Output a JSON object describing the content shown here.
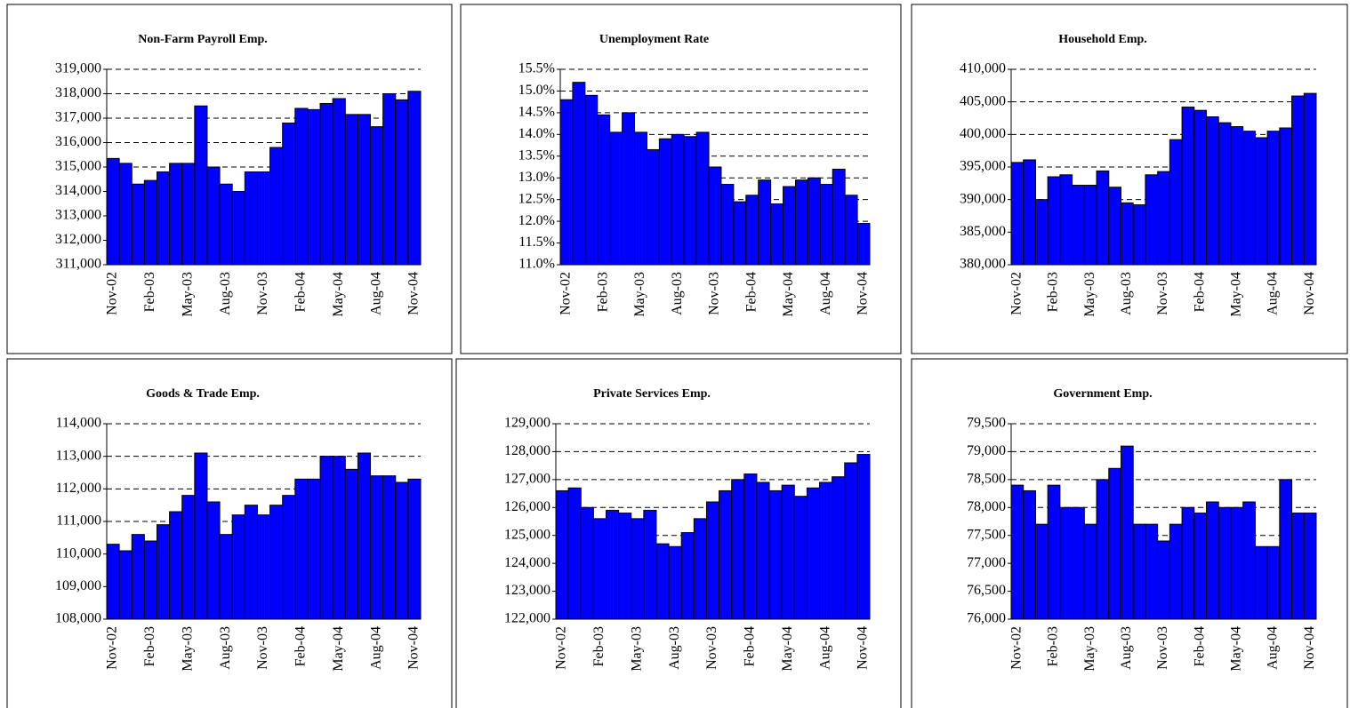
{
  "chart_data": [
    {
      "type": "bar",
      "title": "Non-Farm Payroll Emp.",
      "color": "#0000ff",
      "grid": true,
      "categories": [
        "Nov-02",
        null,
        null,
        "Feb-03",
        null,
        null,
        "May-03",
        null,
        null,
        "Aug-03",
        null,
        null,
        "Nov-03",
        null,
        null,
        "Feb-04",
        null,
        null,
        "May-04",
        null,
        null,
        "Aug-04",
        null,
        null,
        "Nov-04"
      ],
      "values": [
        315350,
        315150,
        314300,
        314450,
        314800,
        315150,
        315150,
        317500,
        315000,
        314300,
        314000,
        314800,
        314800,
        315800,
        316800,
        317400,
        317350,
        317600,
        317800,
        317150,
        317150,
        316650,
        318000,
        317750,
        318100
      ],
      "ylim": [
        311000,
        319000
      ],
      "yticks": [
        {
          "value": 311000,
          "label": "311,000"
        },
        {
          "value": 312000,
          "label": "312,000"
        },
        {
          "value": 313000,
          "label": "313,000"
        },
        {
          "value": 314000,
          "label": "314,000"
        },
        {
          "value": 315000,
          "label": "315,000"
        },
        {
          "value": 316000,
          "label": "316,000"
        },
        {
          "value": 317000,
          "label": "317,000"
        },
        {
          "value": 318000,
          "label": "318,000"
        },
        {
          "value": 319000,
          "label": "319,000"
        }
      ]
    },
    {
      "type": "bar",
      "title": "Unemployment Rate",
      "color": "#0000ff",
      "grid": true,
      "categories": [
        "Nov-02",
        null,
        null,
        "Feb-03",
        null,
        null,
        "May-03",
        null,
        null,
        "Aug-03",
        null,
        null,
        "Nov-03",
        null,
        null,
        "Feb-04",
        null,
        null,
        "May-04",
        null,
        null,
        "Aug-04",
        null,
        null,
        "Nov-04"
      ],
      "values": [
        14.8,
        15.2,
        14.9,
        14.45,
        14.05,
        14.5,
        14.05,
        13.65,
        13.9,
        14.0,
        13.95,
        14.05,
        13.25,
        12.85,
        12.45,
        12.6,
        12.95,
        12.4,
        12.8,
        12.95,
        13.0,
        12.85,
        13.2,
        12.6,
        11.95
      ],
      "ylim": [
        11.0,
        15.5
      ],
      "yticks": [
        {
          "value": 11.0,
          "label": "11.0%"
        },
        {
          "value": 11.5,
          "label": "11.5%"
        },
        {
          "value": 12.0,
          "label": "12.0%"
        },
        {
          "value": 12.5,
          "label": "12.5%"
        },
        {
          "value": 13.0,
          "label": "13.0%"
        },
        {
          "value": 13.5,
          "label": "13.5%"
        },
        {
          "value": 14.0,
          "label": "14.0%"
        },
        {
          "value": 14.5,
          "label": "14.5%"
        },
        {
          "value": 15.0,
          "label": "15.0%"
        },
        {
          "value": 15.5,
          "label": "15.5%"
        }
      ]
    },
    {
      "type": "bar",
      "title": "Household Emp.",
      "color": "#0000ff",
      "grid": true,
      "categories": [
        "Nov-02",
        null,
        null,
        "Feb-03",
        null,
        null,
        "May-03",
        null,
        null,
        "Aug-03",
        null,
        null,
        "Nov-03",
        null,
        null,
        "Feb-04",
        null,
        null,
        "May-04",
        null,
        null,
        "Aug-04",
        null,
        null,
        "Nov-04"
      ],
      "values": [
        395700,
        396100,
        390000,
        393500,
        393800,
        392200,
        392200,
        394400,
        391900,
        389500,
        389200,
        393800,
        394300,
        399200,
        404200,
        403700,
        402700,
        401800,
        401200,
        400500,
        399500,
        400500,
        401000,
        405900,
        406300
      ],
      "ylim": [
        380000,
        410000
      ],
      "yticks": [
        {
          "value": 380000,
          "label": "380,000"
        },
        {
          "value": 385000,
          "label": "385,000"
        },
        {
          "value": 390000,
          "label": "390,000"
        },
        {
          "value": 395000,
          "label": "395,000"
        },
        {
          "value": 400000,
          "label": "400,000"
        },
        {
          "value": 405000,
          "label": "405,000"
        },
        {
          "value": 410000,
          "label": "410,000"
        }
      ]
    },
    {
      "type": "bar",
      "title": "Goods & Trade Emp.",
      "color": "#0000ff",
      "grid": true,
      "categories": [
        "Nov-02",
        null,
        null,
        "Feb-03",
        null,
        null,
        "May-03",
        null,
        null,
        "Aug-03",
        null,
        null,
        "Nov-03",
        null,
        null,
        "Feb-04",
        null,
        null,
        "May-04",
        null,
        null,
        "Aug-04",
        null,
        null,
        "Nov-04"
      ],
      "values": [
        110300,
        110100,
        110600,
        110400,
        110900,
        111300,
        111800,
        113100,
        111600,
        110600,
        111200,
        111500,
        111200,
        111500,
        111800,
        112300,
        112300,
        113000,
        113000,
        112600,
        113100,
        112400,
        112400,
        112200,
        112300
      ],
      "ylim": [
        108000,
        114000
      ],
      "yticks": [
        {
          "value": 108000,
          "label": "108,000"
        },
        {
          "value": 109000,
          "label": "109,000"
        },
        {
          "value": 110000,
          "label": "110,000"
        },
        {
          "value": 111000,
          "label": "111,000"
        },
        {
          "value": 112000,
          "label": "112,000"
        },
        {
          "value": 113000,
          "label": "113,000"
        },
        {
          "value": 114000,
          "label": "114,000"
        }
      ]
    },
    {
      "type": "bar",
      "title": "Private Services Emp.",
      "color": "#0000ff",
      "grid": true,
      "categories": [
        "Nov-02",
        null,
        null,
        "Feb-03",
        null,
        null,
        "May-03",
        null,
        null,
        "Aug-03",
        null,
        null,
        "Nov-03",
        null,
        null,
        "Feb-04",
        null,
        null,
        "May-04",
        null,
        null,
        "Aug-04",
        null,
        null,
        "Nov-04"
      ],
      "values": [
        126600,
        126700,
        126000,
        125600,
        125900,
        125800,
        125600,
        125900,
        124700,
        124600,
        125100,
        125600,
        126200,
        126600,
        127000,
        127200,
        126900,
        126600,
        126800,
        126400,
        126700,
        126900,
        127100,
        127600,
        127900
      ],
      "ylim": [
        122000,
        129000
      ],
      "yticks": [
        {
          "value": 122000,
          "label": "122,000"
        },
        {
          "value": 123000,
          "label": "123,000"
        },
        {
          "value": 124000,
          "label": "124,000"
        },
        {
          "value": 125000,
          "label": "125,000"
        },
        {
          "value": 126000,
          "label": "126,000"
        },
        {
          "value": 127000,
          "label": "127,000"
        },
        {
          "value": 128000,
          "label": "128,000"
        },
        {
          "value": 129000,
          "label": "129,000"
        }
      ]
    },
    {
      "type": "bar",
      "title": "Government Emp.",
      "color": "#0000ff",
      "grid": true,
      "categories": [
        "Nov-02",
        null,
        null,
        "Feb-03",
        null,
        null,
        "May-03",
        null,
        null,
        "Aug-03",
        null,
        null,
        "Nov-03",
        null,
        null,
        "Feb-04",
        null,
        null,
        "May-04",
        null,
        null,
        "Aug-04",
        null,
        null,
        "Nov-04"
      ],
      "values": [
        78400,
        78300,
        77700,
        78400,
        78000,
        78000,
        77700,
        78500,
        78700,
        79100,
        77700,
        77700,
        77400,
        77700,
        78000,
        77900,
        78100,
        78000,
        78000,
        78100,
        77300,
        77300,
        78500,
        77900,
        77900
      ],
      "ylim": [
        76000,
        79500
      ],
      "yticks": [
        {
          "value": 76000,
          "label": "76,000"
        },
        {
          "value": 76500,
          "label": "76,500"
        },
        {
          "value": 77000,
          "label": "77,000"
        },
        {
          "value": 77500,
          "label": "77,500"
        },
        {
          "value": 78000,
          "label": "78,000"
        },
        {
          "value": 78500,
          "label": "78,500"
        },
        {
          "value": 79000,
          "label": "79,000"
        },
        {
          "value": 79500,
          "label": "79,500"
        }
      ]
    }
  ]
}
